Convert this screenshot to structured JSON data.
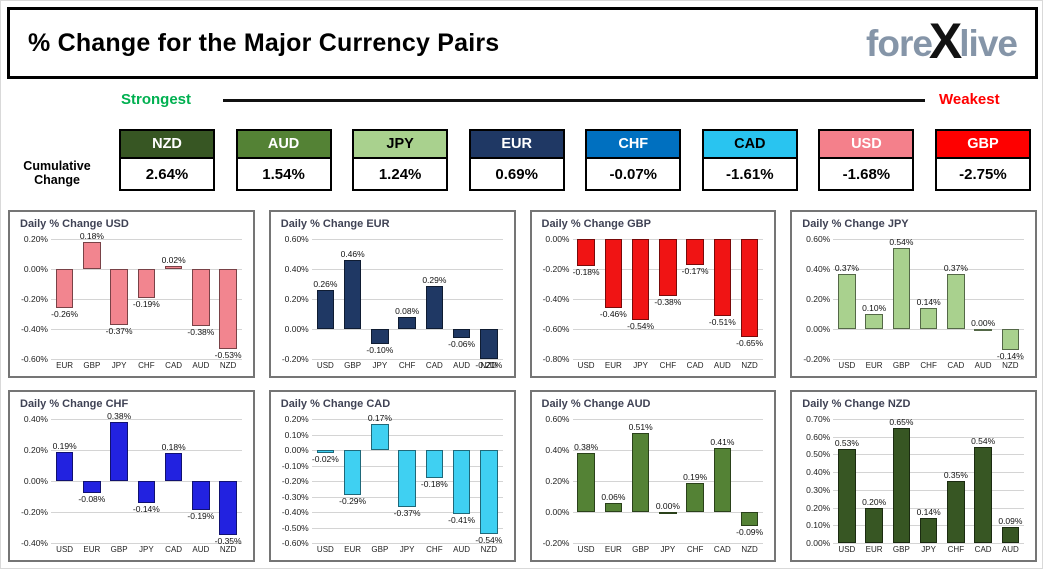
{
  "header": {
    "title": "% Change for the Major Currency Pairs",
    "logo_fore": "fore",
    "logo_x": "X",
    "logo_live": "live"
  },
  "scale": {
    "strongest_label": "Strongest",
    "weakest_label": "Weakest",
    "strongest_color": "#00b050",
    "weakest_color": "#ff0000"
  },
  "cumulative": {
    "row_label": "Cumulative Change",
    "items": [
      {
        "code": "NZD",
        "value": "2.64%",
        "bg": "#375623",
        "fg": "#ffffff"
      },
      {
        "code": "AUD",
        "value": "1.54%",
        "bg": "#548235",
        "fg": "#ffffff"
      },
      {
        "code": "JPY",
        "value": "1.24%",
        "bg": "#a9d18e",
        "fg": "#000000"
      },
      {
        "code": "EUR",
        "value": "0.69%",
        "bg": "#1f3864",
        "fg": "#ffffff"
      },
      {
        "code": "CHF",
        "value": "-0.07%",
        "bg": "#0070c0",
        "fg": "#ffffff"
      },
      {
        "code": "CAD",
        "value": "-1.61%",
        "bg": "#29c4f0",
        "fg": "#000000"
      },
      {
        "code": "USD",
        "value": "-1.68%",
        "bg": "#f4808b",
        "fg": "#ffffff"
      },
      {
        "code": "GBP",
        "value": "-2.75%",
        "bg": "#fe0000",
        "fg": "#ffffff"
      }
    ]
  },
  "chart_data": [
    {
      "type": "bar",
      "title": "Daily % Change USD",
      "categories": [
        "EUR",
        "GBP",
        "JPY",
        "CHF",
        "CAD",
        "AUD",
        "NZD"
      ],
      "values": [
        -0.26,
        0.18,
        -0.37,
        -0.19,
        0.02,
        -0.38,
        -0.53
      ],
      "value_labels": [
        "-0.26%",
        "0.18%",
        "-0.37%",
        "-0.19%",
        "0.02%",
        "-0.38%",
        "-0.53%"
      ],
      "ticks": [
        0.2,
        0.0,
        -0.2,
        -0.4,
        -0.6
      ],
      "tick_labels": [
        "0.20%",
        "0.00%",
        "-0.20%",
        "-0.40%",
        "-0.60%"
      ],
      "ylim": [
        -0.6,
        0.2
      ],
      "grid": true,
      "bar_color": "#f2858f"
    },
    {
      "type": "bar",
      "title": "Daily % Change EUR",
      "categories": [
        "USD",
        "GBP",
        "JPY",
        "CHF",
        "CAD",
        "AUD",
        "NZD"
      ],
      "values": [
        0.26,
        0.46,
        -0.1,
        0.08,
        0.29,
        -0.06,
        -0.2
      ],
      "value_labels": [
        "0.26%",
        "0.46%",
        "-0.10%",
        "0.08%",
        "0.29%",
        "-0.06%",
        "-0.20%"
      ],
      "ticks": [
        0.6,
        0.4,
        0.2,
        0.0,
        -0.2
      ],
      "tick_labels": [
        "0.60%",
        "0.40%",
        "0.20%",
        "0.00%",
        "-0.20%"
      ],
      "ylim": [
        -0.2,
        0.6
      ],
      "grid": true,
      "bar_color": "#1f3864"
    },
    {
      "type": "bar",
      "title": "Daily % Change GBP",
      "categories": [
        "USD",
        "EUR",
        "JPY",
        "CHF",
        "CAD",
        "AUD",
        "NZD"
      ],
      "values": [
        -0.18,
        -0.46,
        -0.54,
        -0.38,
        -0.17,
        -0.51,
        -0.65
      ],
      "value_labels": [
        "-0.18%",
        "-0.46%",
        "-0.54%",
        "-0.38%",
        "-0.17%",
        "-0.51%",
        "-0.65%"
      ],
      "ticks": [
        0.0,
        -0.2,
        -0.4,
        -0.6,
        -0.8
      ],
      "tick_labels": [
        "0.00%",
        "-0.20%",
        "-0.40%",
        "-0.60%",
        "-0.80%"
      ],
      "ylim": [
        -0.8,
        0.0
      ],
      "grid": true,
      "bar_color": "#f01414"
    },
    {
      "type": "bar",
      "title": "Daily % Change JPY",
      "categories": [
        "USD",
        "EUR",
        "GBP",
        "CHF",
        "CAD",
        "AUD",
        "NZD"
      ],
      "values": [
        0.37,
        0.1,
        0.54,
        0.14,
        0.37,
        0.0,
        -0.14
      ],
      "value_labels": [
        "0.37%",
        "0.10%",
        "0.54%",
        "0.14%",
        "0.37%",
        "0.00%",
        "-0.14%"
      ],
      "ticks": [
        0.6,
        0.4,
        0.2,
        0.0,
        -0.2
      ],
      "tick_labels": [
        "0.60%",
        "0.40%",
        "0.20%",
        "0.00%",
        "-0.20%"
      ],
      "ylim": [
        -0.2,
        0.6
      ],
      "grid": true,
      "bar_color": "#a9d18e"
    },
    {
      "type": "bar",
      "title": "Daily % Change CHF",
      "categories": [
        "USD",
        "EUR",
        "GBP",
        "JPY",
        "CAD",
        "AUD",
        "NZD"
      ],
      "values": [
        0.19,
        -0.08,
        0.38,
        -0.14,
        0.18,
        -0.19,
        -0.35
      ],
      "value_labels": [
        "0.19%",
        "-0.08%",
        "0.38%",
        "-0.14%",
        "0.18%",
        "-0.19%",
        "-0.35%"
      ],
      "ticks": [
        0.4,
        0.2,
        0.0,
        -0.2,
        -0.4
      ],
      "tick_labels": [
        "0.40%",
        "0.20%",
        "0.00%",
        "-0.20%",
        "-0.40%"
      ],
      "ylim": [
        -0.4,
        0.4
      ],
      "grid": true,
      "bar_color": "#2222e0"
    },
    {
      "type": "bar",
      "title": "Daily % Change CAD",
      "categories": [
        "USD",
        "EUR",
        "GBP",
        "JPY",
        "CHF",
        "AUD",
        "NZD"
      ],
      "values": [
        -0.02,
        -0.29,
        0.17,
        -0.37,
        -0.18,
        -0.41,
        -0.54
      ],
      "value_labels": [
        "-0.02%",
        "-0.29%",
        "0.17%",
        "-0.37%",
        "-0.18%",
        "-0.41%",
        "-0.54%"
      ],
      "ticks": [
        0.2,
        0.1,
        0.0,
        -0.1,
        -0.2,
        -0.3,
        -0.4,
        -0.5,
        -0.6
      ],
      "tick_labels": [
        "0.20%",
        "0.10%",
        "0.00%",
        "-0.10%",
        "-0.20%",
        "-0.30%",
        "-0.40%",
        "-0.50%",
        "-0.60%"
      ],
      "ylim": [
        -0.6,
        0.2
      ],
      "grid": true,
      "bar_color": "#3fd0f2"
    },
    {
      "type": "bar",
      "title": "Daily % Change AUD",
      "categories": [
        "USD",
        "EUR",
        "GBP",
        "JPY",
        "CHF",
        "CAD",
        "NZD"
      ],
      "values": [
        0.38,
        0.06,
        0.51,
        0.0,
        0.19,
        0.41,
        -0.09
      ],
      "value_labels": [
        "0.38%",
        "0.06%",
        "0.51%",
        "0.00%",
        "0.19%",
        "0.41%",
        "-0.09%"
      ],
      "ticks": [
        0.6,
        0.4,
        0.2,
        0.0,
        -0.2
      ],
      "tick_labels": [
        "0.60%",
        "0.40%",
        "0.20%",
        "0.00%",
        "-0.20%"
      ],
      "ylim": [
        -0.2,
        0.6
      ],
      "grid": true,
      "bar_color": "#548235"
    },
    {
      "type": "bar",
      "title": "Daily % Change NZD",
      "categories": [
        "USD",
        "EUR",
        "GBP",
        "JPY",
        "CHF",
        "CAD",
        "AUD"
      ],
      "values": [
        0.53,
        0.2,
        0.65,
        0.14,
        0.35,
        0.54,
        0.09
      ],
      "value_labels": [
        "0.53%",
        "0.20%",
        "0.65%",
        "0.14%",
        "0.35%",
        "0.54%",
        "0.09%"
      ],
      "ticks": [
        0.7,
        0.6,
        0.5,
        0.4,
        0.3,
        0.2,
        0.1,
        0.0
      ],
      "tick_labels": [
        "0.70%",
        "0.60%",
        "0.50%",
        "0.40%",
        "0.30%",
        "0.20%",
        "0.10%",
        "0.00%"
      ],
      "ylim": [
        0.0,
        0.7
      ],
      "grid": true,
      "bar_color": "#375623"
    }
  ]
}
